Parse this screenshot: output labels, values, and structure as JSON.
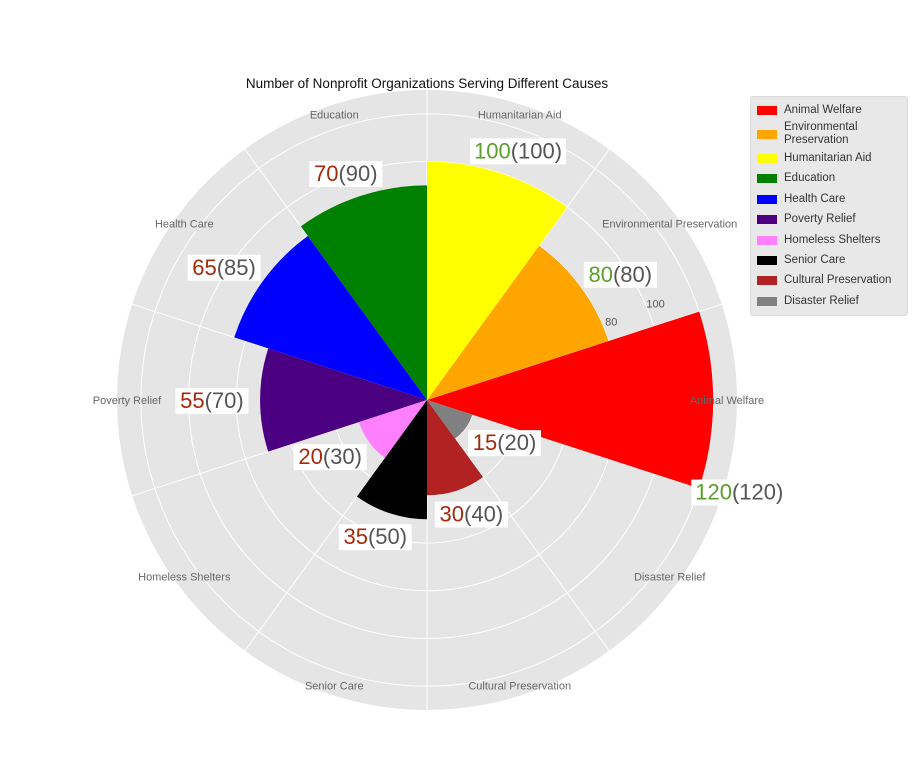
{
  "chart_data": {
    "type": "polar-bar",
    "title": "Number of Nonprofit Organizations Serving Different Causes",
    "categories": [
      "Animal Welfare",
      "Environmental Preservation",
      "Humanitarian Aid",
      "Education",
      "Health Care",
      "Poverty Relief",
      "Homeless Shelters",
      "Senior Care",
      "Cultural Preservation",
      "Disaster Relief"
    ],
    "values": [
      120,
      80,
      100,
      90,
      85,
      70,
      30,
      50,
      40,
      20
    ],
    "label_primary": [
      120,
      80,
      100,
      70,
      65,
      55,
      20,
      35,
      30,
      15
    ],
    "colors": [
      "#ff0000",
      "#ffa500",
      "#ffff00",
      "#008000",
      "#0000ff",
      "#4b0082",
      "#ff80ff",
      "#000000",
      "#b22222",
      "#808080"
    ],
    "primary_label_color_match": "#5aa02c",
    "primary_label_color_diff": "#a52a0a",
    "radial_ticks": [
      "80",
      "100"
    ],
    "rlim": [
      0,
      130
    ],
    "grid": true,
    "legend_position": "top-right"
  }
}
